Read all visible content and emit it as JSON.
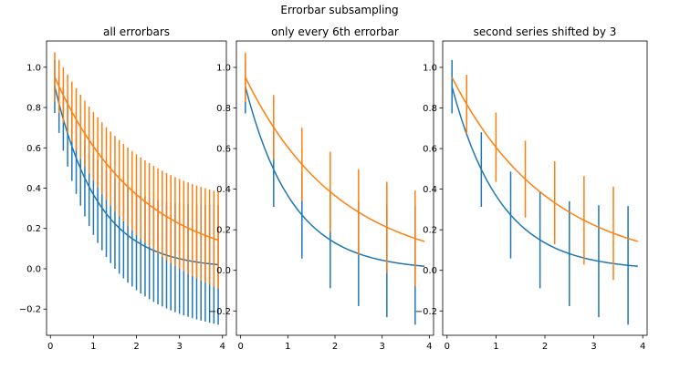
{
  "figure": {
    "title": "Errorbar subsampling"
  },
  "chart_data": [
    {
      "type": "line",
      "title": "all errorbars",
      "xlabel": "",
      "ylabel": "",
      "xlim": [
        -0.09,
        4.09
      ],
      "ylim": [
        -0.33,
        1.13
      ],
      "xticks": [
        0,
        1,
        2,
        3,
        4
      ],
      "yticks": [
        -0.2,
        0.0,
        0.2,
        0.4,
        0.6,
        0.8,
        1.0
      ],
      "ytick_labels": [
        "−0.2",
        "0.0",
        "0.2",
        "0.4",
        "0.6",
        "0.8",
        "1.0"
      ],
      "grid": false,
      "x": [
        0.1,
        0.2,
        0.3,
        0.4,
        0.5,
        0.6,
        0.7,
        0.8,
        0.9,
        1.0,
        1.1,
        1.2,
        1.3,
        1.4,
        1.5,
        1.6,
        1.7,
        1.8,
        1.9,
        2.0,
        2.1,
        2.2,
        2.3,
        2.4,
        2.5,
        2.6,
        2.7,
        2.8,
        2.9,
        3.0,
        3.1,
        3.2,
        3.3,
        3.4,
        3.5,
        3.6,
        3.7,
        3.8,
        3.9
      ],
      "series": [
        {
          "color": "#1f77b4",
          "y_formula": "exp(-x)",
          "yerr_formula": "0.1+0.1*sqrt(x)",
          "errorevery": 1,
          "offset": 0
        },
        {
          "color": "#ff7f0e",
          "y_formula": "exp(-x/2)",
          "yerr_formula": "0.1+0.1*sqrt(x/2)",
          "errorevery": 1,
          "offset": 0
        }
      ]
    },
    {
      "type": "line",
      "title": "only every 6th errorbar",
      "xlabel": "",
      "ylabel": "",
      "xlim": [
        -0.09,
        4.09
      ],
      "ylim": [
        -0.32,
        1.13
      ],
      "xticks": [
        0,
        1,
        2,
        3,
        4
      ],
      "yticks": [
        -0.2,
        0.0,
        0.2,
        0.4,
        0.6,
        0.8,
        1.0
      ],
      "ytick_labels": [
        "−0.2",
        "0.0",
        "0.2",
        "0.4",
        "0.6",
        "0.8",
        "1.0"
      ],
      "grid": false,
      "x": [
        0.1,
        0.2,
        0.3,
        0.4,
        0.5,
        0.6,
        0.7,
        0.8,
        0.9,
        1.0,
        1.1,
        1.2,
        1.3,
        1.4,
        1.5,
        1.6,
        1.7,
        1.8,
        1.9,
        2.0,
        2.1,
        2.2,
        2.3,
        2.4,
        2.5,
        2.6,
        2.7,
        2.8,
        2.9,
        3.0,
        3.1,
        3.2,
        3.3,
        3.4,
        3.5,
        3.6,
        3.7,
        3.8,
        3.9
      ],
      "series": [
        {
          "color": "#1f77b4",
          "y_formula": "exp(-x)",
          "yerr_formula": "0.1+0.1*sqrt(x)",
          "errorevery": 6,
          "offset": 0
        },
        {
          "color": "#ff7f0e",
          "y_formula": "exp(-x/2)",
          "yerr_formula": "0.1+0.1*sqrt(x/2)",
          "errorevery": 6,
          "offset": 0
        }
      ]
    },
    {
      "type": "line",
      "title": "second series shifted by 3",
      "xlabel": "",
      "ylabel": "",
      "xlim": [
        -0.09,
        4.09
      ],
      "ylim": [
        -0.32,
        1.13
      ],
      "xticks": [
        0,
        1,
        2,
        3,
        4
      ],
      "yticks": [
        -0.2,
        0.0,
        0.2,
        0.4,
        0.6,
        0.8,
        1.0
      ],
      "ytick_labels": [
        "−0.2",
        "0.0",
        "0.2",
        "0.4",
        "0.6",
        "0.8",
        "1.0"
      ],
      "grid": false,
      "x": [
        0.1,
        0.2,
        0.3,
        0.4,
        0.5,
        0.6,
        0.7,
        0.8,
        0.9,
        1.0,
        1.1,
        1.2,
        1.3,
        1.4,
        1.5,
        1.6,
        1.7,
        1.8,
        1.9,
        2.0,
        2.1,
        2.2,
        2.3,
        2.4,
        2.5,
        2.6,
        2.7,
        2.8,
        2.9,
        3.0,
        3.1,
        3.2,
        3.3,
        3.4,
        3.5,
        3.6,
        3.7,
        3.8,
        3.9
      ],
      "series": [
        {
          "color": "#1f77b4",
          "y_formula": "exp(-x)",
          "yerr_formula": "0.1+0.1*sqrt(x)",
          "errorevery": 6,
          "offset": 0
        },
        {
          "color": "#ff7f0e",
          "y_formula": "exp(-x/2)",
          "yerr_formula": "0.1+0.1*sqrt(x/2)",
          "errorevery": 6,
          "offset": 3
        }
      ]
    }
  ]
}
